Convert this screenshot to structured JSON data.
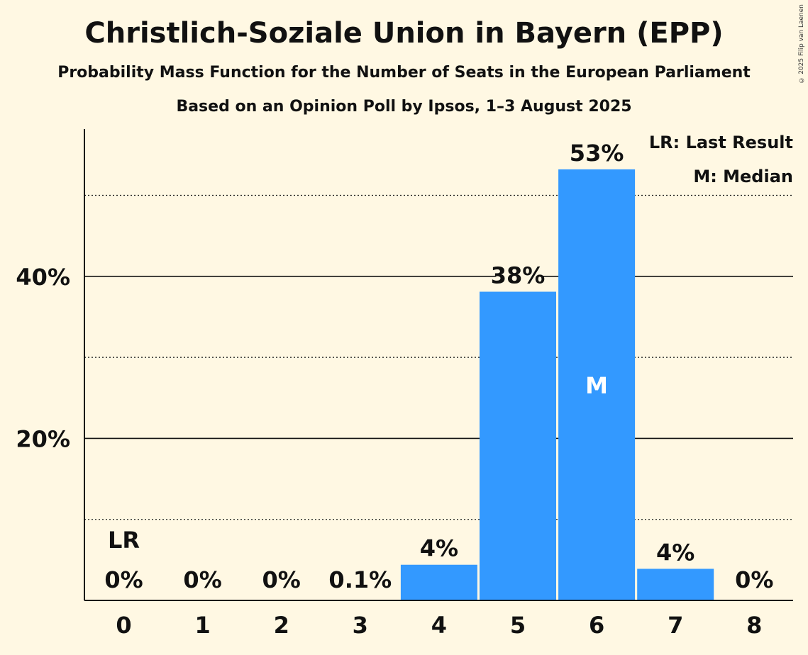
{
  "title": "Christlich-Soziale Union in Bayern (EPP)",
  "subtitle": "Probability Mass Function for the Number of Seats in the European Parliament",
  "caption": "Based on an Opinion Poll by Ipsos, 1–3 August 2025",
  "copyright": "© 2025 Filip van Laenen",
  "colors": {
    "bar": "#3399FF",
    "background": "#FFF8E3",
    "text": "#111111"
  },
  "legend": {
    "lr": "LR: Last Result",
    "median": "M: Median"
  },
  "chart_data": {
    "type": "bar",
    "categories": [
      "0",
      "1",
      "2",
      "3",
      "4",
      "5",
      "6",
      "7",
      "8"
    ],
    "values": [
      0,
      0,
      0,
      0.1,
      4.4,
      38.1,
      53.2,
      3.9,
      0
    ],
    "labels": [
      "0%",
      "0%",
      "0%",
      "0.1%",
      "4%",
      "38%",
      "53%",
      "4%",
      "0%"
    ],
    "ylim": [
      0,
      58
    ],
    "yticks": [
      {
        "value": 20,
        "label": "20%"
      },
      {
        "value": 40,
        "label": "40%"
      }
    ],
    "minor_gridlines": [
      10,
      30,
      50
    ],
    "last_result_index": 0,
    "last_result_marker": "LR",
    "median_index": 6,
    "median_marker": "M",
    "xlabel": "",
    "ylabel": ""
  }
}
